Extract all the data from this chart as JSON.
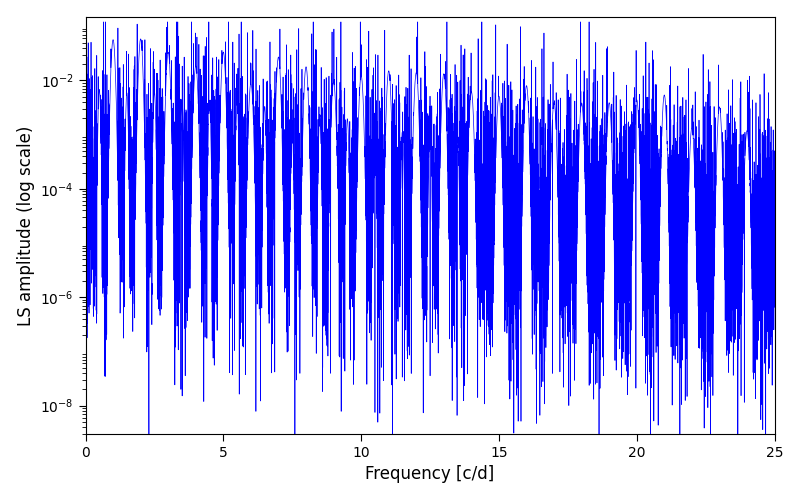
{
  "title": "",
  "xlabel": "Frequency [c/d]",
  "ylabel": "LS amplitude (log scale)",
  "line_color": "#0000ff",
  "line_width": 0.5,
  "xlim": [
    0,
    25
  ],
  "ylim": [
    3e-09,
    0.15
  ],
  "freq_min": 0.0,
  "freq_max": 25.0,
  "n_points": 12000,
  "figsize": [
    8.0,
    5.0
  ],
  "dpi": 100,
  "background_color": "#ffffff",
  "yticks": [
    1e-08,
    1e-06,
    0.0001,
    0.01
  ],
  "xticks": [
    0,
    5,
    10,
    15,
    20,
    25
  ]
}
